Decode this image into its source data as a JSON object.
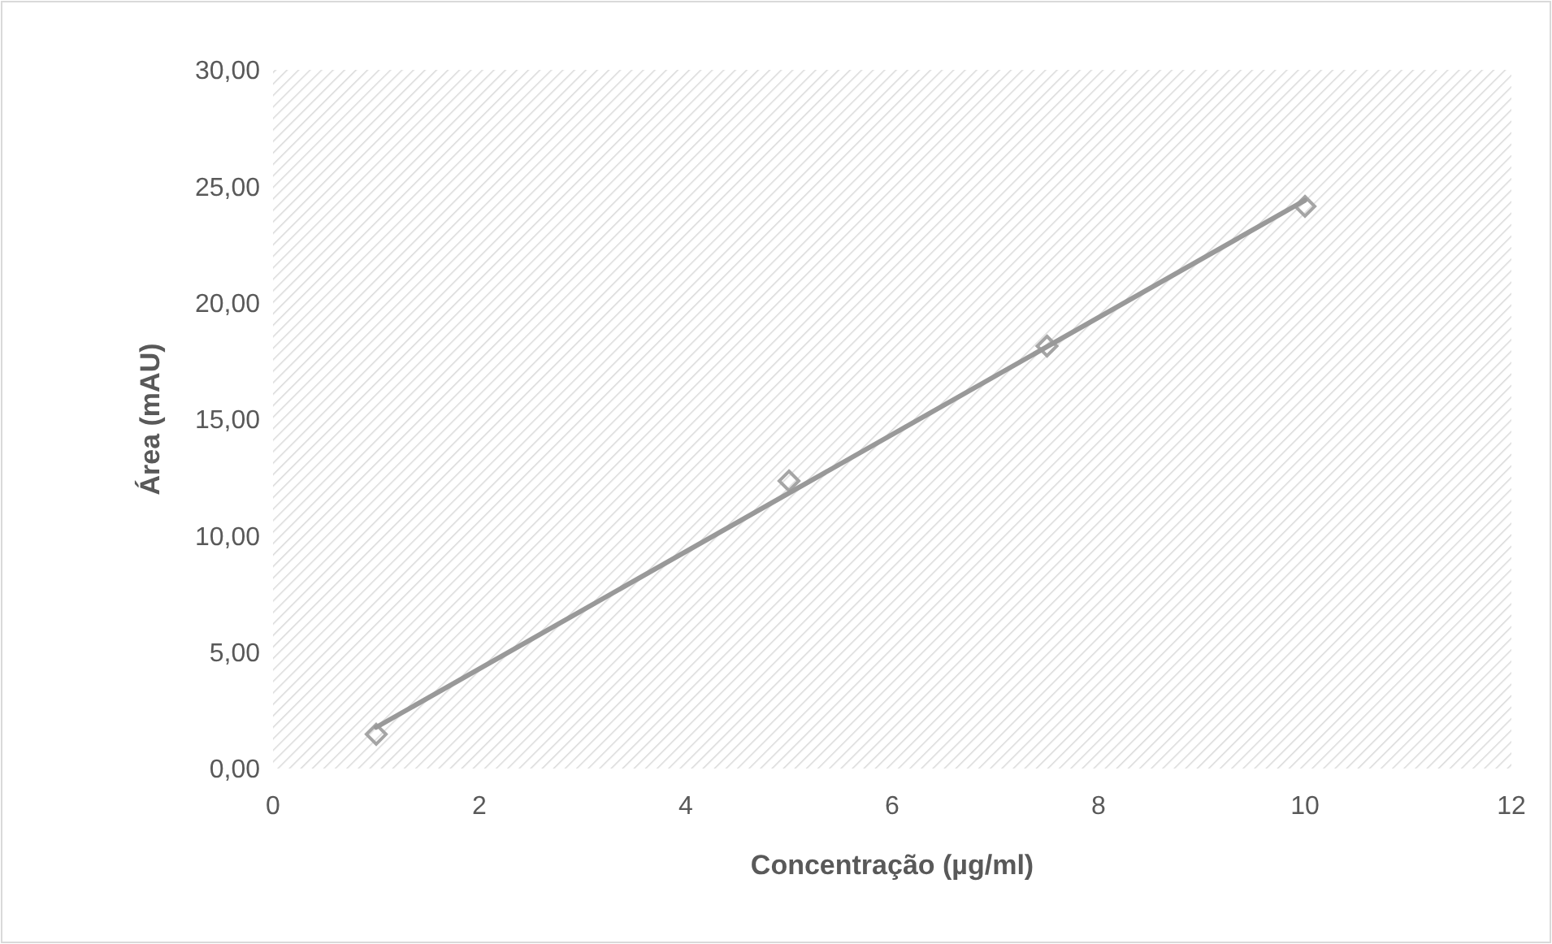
{
  "chart_data": {
    "type": "scatter",
    "xlabel": "Concentração (µg/ml)",
    "ylabel": "Área (mAU)",
    "xlim": [
      0,
      12
    ],
    "xticks": [
      0,
      2,
      4,
      6,
      8,
      10,
      12
    ],
    "ylim": [
      0,
      30
    ],
    "yticks": [
      {
        "value": 0,
        "label": "0,00"
      },
      {
        "value": 5,
        "label": "5,00"
      },
      {
        "value": 10,
        "label": "10,00"
      },
      {
        "value": 15,
        "label": "15,00"
      },
      {
        "value": 20,
        "label": "20,00"
      },
      {
        "value": 25,
        "label": "25,00"
      },
      {
        "value": 30,
        "label": "30,00"
      }
    ],
    "series": [
      {
        "color": "#a5a5a5",
        "x": [
          1,
          5,
          7.5,
          10
        ],
        "values": [
          1.47,
          12.35,
          18.14,
          24.14
        ],
        "marker": "diamond"
      },
      {
        "type": "line",
        "color": "#999999",
        "x": [
          1,
          10
        ],
        "values": [
          1.77,
          24.4
        ],
        "line_style": "solid",
        "marker": "none"
      }
    ],
    "grid": false
  }
}
